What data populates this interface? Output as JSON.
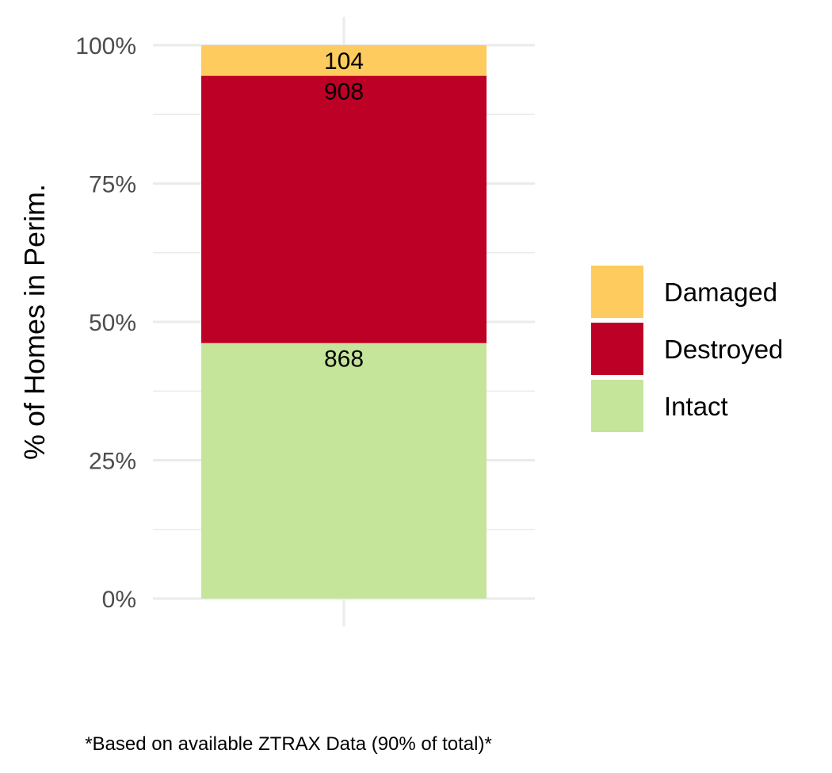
{
  "chart_data": {
    "type": "bar",
    "stacked": true,
    "normalized": true,
    "ylabel": "% of Homes in Perim.",
    "xlabel": "",
    "ylim": [
      0,
      1
    ],
    "y_ticks": [
      "0%",
      "25%",
      "50%",
      "75%",
      "100%"
    ],
    "categories": [
      ""
    ],
    "series": [
      {
        "name": "Intact",
        "values": [
          868
        ],
        "color": "#c5e59a"
      },
      {
        "name": "Destroyed",
        "values": [
          908
        ],
        "color": "#bd0026"
      },
      {
        "name": "Damaged",
        "values": [
          104
        ],
        "color": "#fecb5e"
      }
    ],
    "legend": {
      "position": "right",
      "items": [
        "Damaged",
        "Destroyed",
        "Intact"
      ]
    },
    "grid": true,
    "caption": "*Based on available ZTRAX Data (90% of total)*"
  }
}
